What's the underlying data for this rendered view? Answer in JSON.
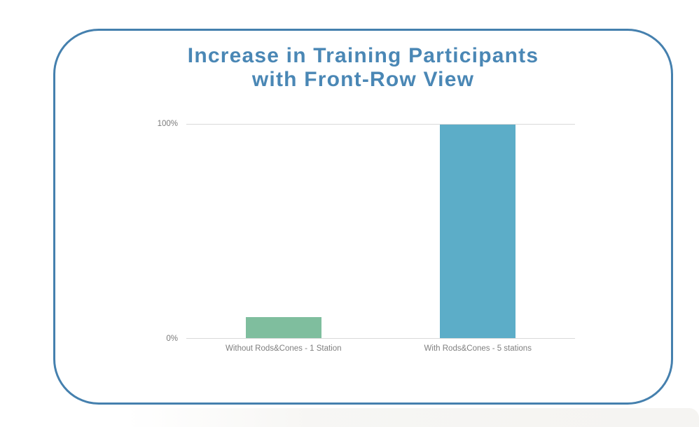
{
  "page": {
    "background_color": "#ffffff",
    "bottom_band_color": "#f4f3f0"
  },
  "card": {
    "border_color": "#4580ae",
    "background_color": "#ffffff"
  },
  "chart_data": {
    "type": "bar",
    "title": "Increase in Training Participants with Front-Row View",
    "title_lines": [
      "Increase in Training Participants",
      "with Front-Row View"
    ],
    "title_color": "#4a87b5",
    "categories": [
      "Without Rods&Cones - 1 Station",
      "With Rods&Cones - 5 stations"
    ],
    "values": [
      10,
      100
    ],
    "unit": "%",
    "bar_colors": [
      "#7fbe9e",
      "#5cadc8"
    ],
    "xlabel": "",
    "ylabel": "",
    "ylim": [
      0,
      100
    ],
    "yticks": [
      {
        "value": 100,
        "label": "100%"
      },
      {
        "value": 0,
        "label": "0%"
      }
    ],
    "grid": "horizontal-at-ticks",
    "gridline_color": "#d9d9d9",
    "tick_label_color": "#7a7a7a",
    "category_label_color": "#7f7f7f",
    "legend": "none"
  }
}
